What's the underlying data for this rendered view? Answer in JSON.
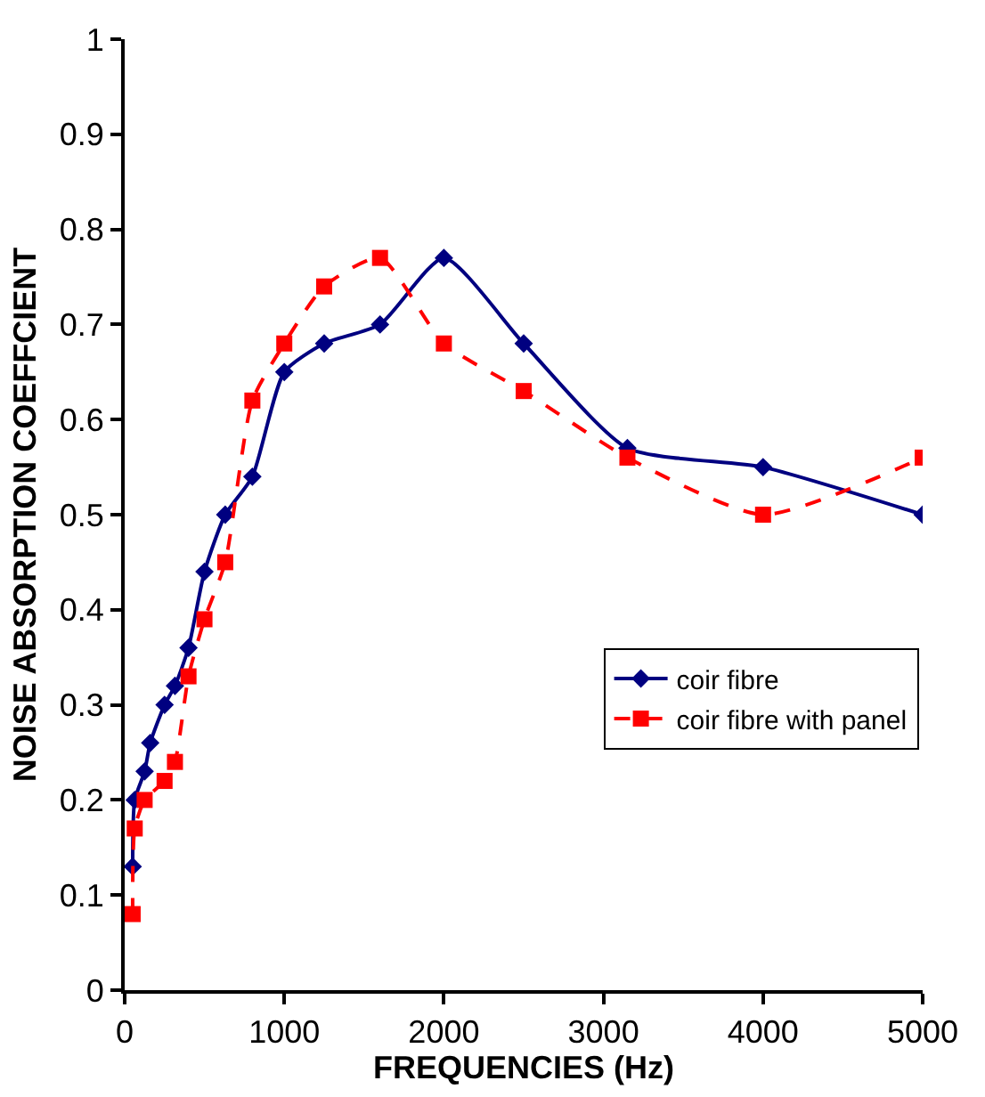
{
  "chart_data": {
    "type": "line",
    "xlabel": "FREQUENCIES (Hz)",
    "ylabel": "NOISE ABSORPTION COEFFCIENT",
    "xlim": [
      0,
      5000
    ],
    "xticks": [
      0,
      1000,
      2000,
      3000,
      4000,
      5000
    ],
    "ylim": [
      0,
      1
    ],
    "yticks": [
      0,
      0.1,
      0.2,
      0.3,
      0.4,
      0.5,
      0.6,
      0.7,
      0.8,
      0.9,
      1
    ],
    "legend": "right",
    "series": [
      {
        "name": "coir fibre",
        "color": "#000080",
        "marker": "diamond",
        "line_style": "solid",
        "x": [
          50,
          63,
          125,
          160,
          250,
          315,
          400,
          500,
          630,
          800,
          1000,
          1250,
          1600,
          2000,
          2500,
          3150,
          4000,
          5000
        ],
        "values": [
          0.13,
          0.2,
          0.23,
          0.26,
          0.3,
          0.32,
          0.36,
          0.44,
          0.5,
          0.54,
          0.65,
          0.68,
          0.7,
          0.77,
          0.68,
          0.57,
          0.55,
          0.5
        ]
      },
      {
        "name": "coir fibre with panel",
        "color": "#ff0000",
        "marker": "square",
        "line_style": "dashed",
        "x": [
          50,
          63,
          125,
          250,
          315,
          400,
          500,
          630,
          800,
          1000,
          1250,
          1600,
          2000,
          2500,
          3150,
          4000,
          5000
        ],
        "values": [
          0.08,
          0.17,
          0.2,
          0.22,
          0.24,
          0.33,
          0.39,
          0.45,
          0.62,
          0.68,
          0.74,
          0.77,
          0.68,
          0.63,
          0.56,
          0.5,
          0.56
        ]
      }
    ]
  }
}
